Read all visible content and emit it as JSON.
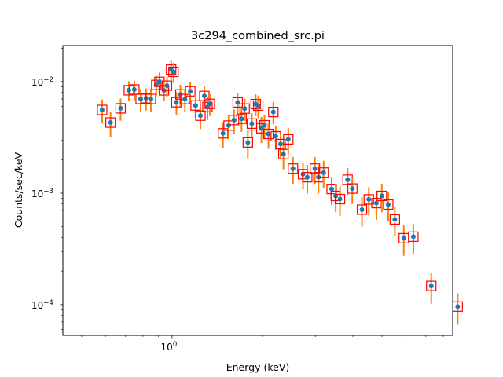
{
  "chart_data": {
    "type": "scatter",
    "title": "3c294_combined_src.pi",
    "xlabel": "Energy (keV)",
    "ylabel": "Counts/sec/keV",
    "xscale": "log",
    "yscale": "log",
    "xlim": [
      0.433,
      8.6
    ],
    "ylim": [
      5.3e-05,
      0.0211
    ],
    "grid": false,
    "x_ticks": [
      {
        "value": 1,
        "label_base": "10",
        "label_exp": "0"
      }
    ],
    "y_ticks": [
      {
        "value": 0.01,
        "label_base": "10",
        "label_exp": "−2"
      },
      {
        "value": 0.001,
        "label_base": "10",
        "label_exp": "−3"
      },
      {
        "value": 0.0001,
        "label_base": "10",
        "label_exp": "−4"
      }
    ],
    "colors": {
      "marker": "#1f77b4",
      "errorbar": "#ff7f0e",
      "box": "#ff0000",
      "axes": "#000000"
    },
    "series": [
      {
        "name": "data",
        "x": [
          0.585,
          0.624,
          0.674,
          0.718,
          0.749,
          0.786,
          0.819,
          0.85,
          0.886,
          0.908,
          0.94,
          0.962,
          0.993,
          1.011,
          1.034,
          1.066,
          1.104,
          1.15,
          1.198,
          1.243,
          1.281,
          1.312,
          1.336,
          1.478,
          1.543,
          1.608,
          1.654,
          1.704,
          1.745,
          1.788,
          1.844,
          1.899,
          1.936,
          1.984,
          2.031,
          2.094,
          2.174,
          2.215,
          2.298,
          2.349,
          2.438,
          2.527,
          2.729,
          2.82,
          2.99,
          3.073,
          3.197,
          3.4,
          3.507,
          3.624,
          3.842,
          3.983,
          4.29,
          4.52,
          4.793,
          4.995,
          5.245,
          5.518,
          5.91,
          6.361,
          7.297,
          8.936
        ],
        "y": [
          0.00558,
          0.0043,
          0.00577,
          0.00838,
          0.00851,
          0.007,
          0.00711,
          0.007,
          0.00935,
          0.00997,
          0.00836,
          0.00921,
          0.01286,
          0.01225,
          0.00654,
          0.00769,
          0.00698,
          0.0082,
          0.00612,
          0.00496,
          0.00745,
          0.00593,
          0.00633,
          0.00344,
          0.00404,
          0.00453,
          0.00652,
          0.00465,
          0.00574,
          0.00285,
          0.00421,
          0.0063,
          0.0061,
          0.00382,
          0.00407,
          0.0034,
          0.00535,
          0.00324,
          0.00276,
          0.00224,
          0.00304,
          0.00166,
          0.00148,
          0.00139,
          0.00166,
          0.00139,
          0.00153,
          0.00109,
          0.000944,
          0.000885,
          0.00132,
          0.0011,
          0.000711,
          0.000879,
          0.000814,
          0.000944,
          0.00079,
          0.000581,
          0.000394,
          0.000407,
          0.000147,
          9.61e-05
        ],
        "yerr": [
          0.00135,
          0.0011,
          0.0013,
          0.0017,
          0.0017,
          0.0016,
          0.0016,
          0.0016,
          0.0019,
          0.0021,
          0.0017,
          0.0019,
          0.0025,
          0.0025,
          0.0015,
          0.0017,
          0.0016,
          0.0017,
          0.0014,
          0.0012,
          0.0016,
          0.0014,
          0.0014,
          0.0009,
          0.001,
          0.0011,
          0.0014,
          0.0011,
          0.0013,
          0.0008,
          0.001,
          0.0014,
          0.0014,
          0.001,
          0.001,
          0.0009,
          0.0012,
          0.0008,
          0.0007,
          0.0006,
          0.0008,
          0.00045,
          0.0004,
          0.0004,
          0.00045,
          0.0004,
          0.00042,
          0.00031,
          0.00027,
          0.00026,
          0.00036,
          0.0003,
          0.00021,
          0.00025,
          0.00024,
          0.00027,
          0.00023,
          0.00017,
          0.00012,
          0.00012,
          4.5e-05,
          3e-05
        ]
      }
    ]
  }
}
